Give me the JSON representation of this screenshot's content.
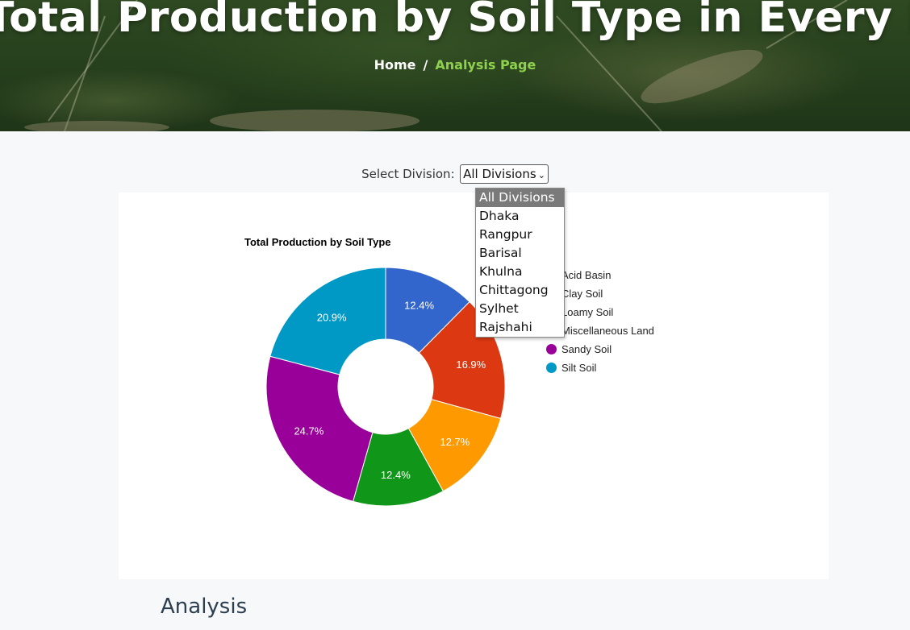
{
  "hero": {
    "title": "Total Production by Soil Type in Every Division",
    "breadcrumb": {
      "home": "Home",
      "separator": "/",
      "current": "Analysis Page"
    }
  },
  "filter": {
    "label": "Select Division:",
    "selected": "All Divisions",
    "options": [
      "All Divisions",
      "Dhaka",
      "Rangpur",
      "Barisal",
      "Khulna",
      "Chittagong",
      "Sylhet",
      "Rajshahi"
    ]
  },
  "chart_data": {
    "type": "pie",
    "title": "Total Production by Soil Type",
    "hole": true,
    "legend_position": "right",
    "categories": [
      "Acid Basin",
      "Clay Soil",
      "Loamy Soil",
      "Miscellaneous Land",
      "Sandy Soil",
      "Silt Soil"
    ],
    "series": [
      {
        "values": [
          12.4,
          16.9,
          12.7,
          12.4,
          24.7,
          20.9
        ],
        "labels": [
          "12.4%",
          "16.9%",
          "12.7%",
          "12.4%",
          "24.7%",
          "20.9%"
        ]
      }
    ],
    "colors": [
      "#3366cc",
      "#dc3912",
      "#ff9900",
      "#109618",
      "#990099",
      "#0099c6"
    ]
  },
  "sections": {
    "analysis_heading": "Analysis"
  }
}
